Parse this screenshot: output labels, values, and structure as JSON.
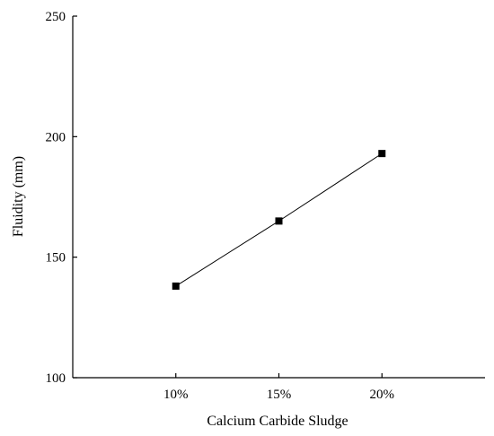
{
  "chart_data": {
    "type": "line",
    "title": "",
    "xlabel": "Calcium Carbide Sludge",
    "ylabel": "Fluidity (mm)",
    "categories": [
      "10%",
      "15%",
      "20%"
    ],
    "x": [
      10,
      15,
      20
    ],
    "xlim": [
      5,
      25
    ],
    "ylim": [
      100,
      250
    ],
    "yticks": [
      100,
      150,
      200,
      250
    ],
    "grid": false,
    "legend": "none",
    "series": [
      {
        "values": [
          138,
          165,
          193
        ],
        "marker": "square",
        "color": "#000000"
      }
    ]
  }
}
